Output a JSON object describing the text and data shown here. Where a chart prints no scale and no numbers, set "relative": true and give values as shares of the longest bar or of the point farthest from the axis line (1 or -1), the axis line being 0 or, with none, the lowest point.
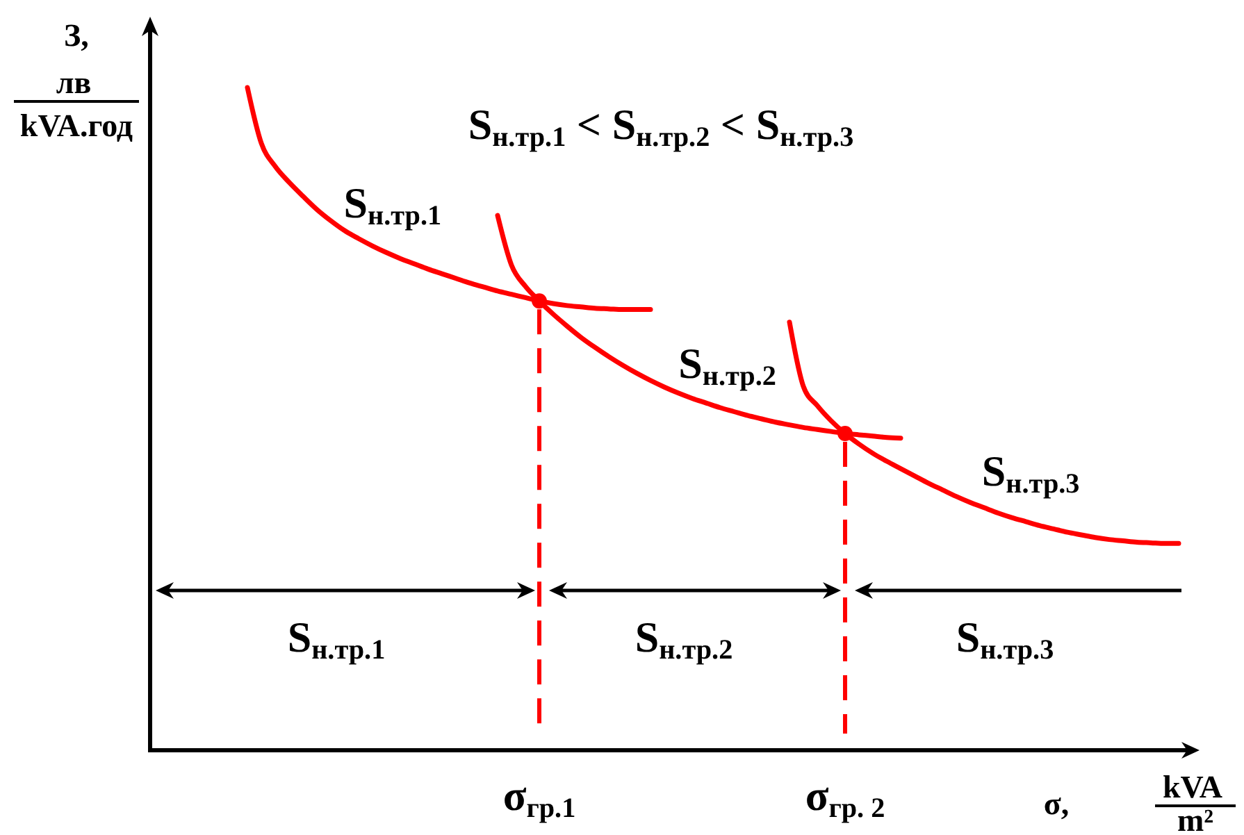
{
  "chart_data": {
    "type": "line",
    "relative": true,
    "xlabel": "σ,\nkVA\nm²",
    "ylabel": "З,\nлв\nkVA.год",
    "categories": [
      null,
      null,
      null,
      null,
      null,
      null,
      null,
      null,
      null,
      null,
      null,
      null,
      null,
      null,
      null,
      null,
      null,
      null,
      null,
      null,
      null,
      null,
      null,
      null,
      null,
      null,
      null,
      null,
      "σ$_{гр.1}$",
      null,
      null,
      null,
      null,
      null,
      null,
      null,
      null,
      null,
      null,
      null,
      null,
      null,
      null,
      null,
      null,
      null,
      null,
      null,
      null,
      null,
      "σ$_{гр. 2}$",
      null,
      null,
      null,
      null,
      null,
      null,
      null,
      null,
      null,
      null,
      null,
      null,
      null,
      null,
      null,
      null,
      null,
      null,
      null,
      null,
      null,
      null,
      null,
      null
    ],
    "series": [
      {
        "name": "S$_{н.тр.1}$",
        "color": "#ff0000",
        "values": [
          null,
          null,
          null,
          null,
          null,
          null,
          null,
          1,
          0.916,
          0.881,
          0.857,
          0.836,
          0.816,
          0.799,
          0.784,
          0.772,
          0.761,
          0.751,
          0.742,
          0.734,
          0.726,
          0.719,
          0.712,
          0.705,
          0.699,
          0.693,
          0.688,
          0.683,
          0.678,
          0.674,
          0.671,
          0.669,
          0.667,
          0.666,
          0.665,
          0.665,
          0.665,
          null,
          null,
          null,
          null,
          null,
          null,
          null,
          null,
          null,
          null,
          null,
          null,
          null,
          null,
          null,
          null,
          null,
          null,
          null,
          null,
          null,
          null,
          null,
          null,
          null,
          null,
          null,
          null,
          null,
          null,
          null,
          null,
          null,
          null,
          null,
          null,
          null,
          null
        ]
      },
      {
        "name": "S$_{н.тр.2}$",
        "color": "#ff0000",
        "values": [
          null,
          null,
          null,
          null,
          null,
          null,
          null,
          null,
          null,
          null,
          null,
          null,
          null,
          null,
          null,
          null,
          null,
          null,
          null,
          null,
          null,
          null,
          null,
          null,
          null,
          0.807,
          0.732,
          0.7,
          0.678,
          0.658,
          0.64,
          0.623,
          0.608,
          0.594,
          0.581,
          0.569,
          0.558,
          0.548,
          0.539,
          0.531,
          0.524,
          0.517,
          0.511,
          0.505,
          0.5,
          0.495,
          0.491,
          0.487,
          0.484,
          0.481,
          0.478,
          0.476,
          0.474,
          0.472,
          0.471,
          null,
          null,
          null,
          null,
          null,
          null,
          null,
          null,
          null,
          null,
          null,
          null,
          null,
          null,
          null,
          null,
          null,
          null,
          null,
          null
        ]
      },
      {
        "name": "S$_{н.тр.3}$",
        "color": "#ff0000",
        "values": [
          null,
          null,
          null,
          null,
          null,
          null,
          null,
          null,
          null,
          null,
          null,
          null,
          null,
          null,
          null,
          null,
          null,
          null,
          null,
          null,
          null,
          null,
          null,
          null,
          null,
          null,
          null,
          null,
          null,
          null,
          null,
          null,
          null,
          null,
          null,
          null,
          null,
          null,
          null,
          null,
          null,
          null,
          null,
          null,
          null,
          null,
          0.646,
          0.549,
          0.52,
          0.497,
          0.478,
          0.462,
          0.448,
          0.436,
          0.425,
          0.414,
          0.403,
          0.393,
          0.383,
          0.374,
          0.366,
          0.358,
          0.351,
          0.345,
          0.339,
          0.334,
          0.329,
          0.325,
          0.321,
          0.318,
          0.316,
          0.314,
          0.313,
          0.312,
          0.312
        ]
      },
      {
        "type": "scatter",
        "color": "#ff0000",
        "marker": "circle",
        "values": [
          null,
          null,
          null,
          null,
          null,
          null,
          null,
          null,
          null,
          null,
          null,
          null,
          null,
          null,
          null,
          null,
          null,
          null,
          null,
          null,
          null,
          null,
          null,
          null,
          null,
          null,
          null,
          null,
          0.678,
          null,
          null,
          null,
          null,
          null,
          null,
          null,
          null,
          null,
          null,
          null,
          null,
          null,
          null,
          null,
          null,
          null,
          null,
          null,
          null,
          null,
          0.478,
          null,
          null,
          null,
          null,
          null,
          null,
          null,
          null,
          null,
          null,
          null,
          null,
          null,
          null,
          null,
          null,
          null,
          null,
          null,
          null,
          null,
          null,
          null,
          null
        ]
      }
    ],
    "ref_lines": [
      {
        "axis": "x",
        "value": "σ$_{гр.1}$",
        "color": "#ff0000",
        "line_style": "dashed"
      },
      {
        "axis": "x",
        "value": "σ$_{гр. 2}$",
        "color": "#ff0000",
        "line_style": "dashed"
      }
    ],
    "annotations": [
      "S$_{н.тр.1}$ < S$_{н.тр.2}$ < S$_{н.тр.3}$",
      "S$_{н.тр.1}$",
      "S$_{н.тр.2}$",
      "S$_{н.тр.3}$"
    ]
  }
}
